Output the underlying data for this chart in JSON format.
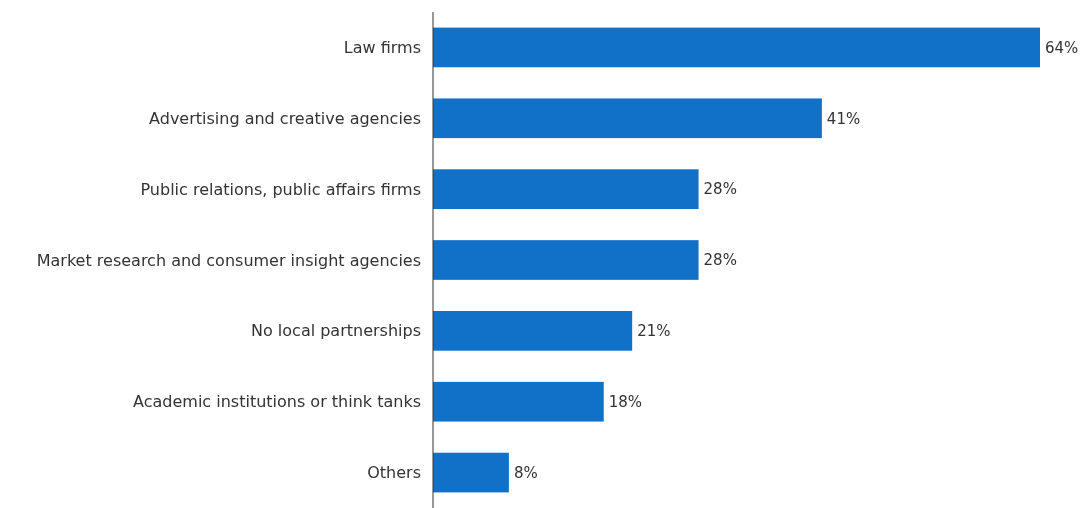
{
  "chart_data": {
    "type": "bar",
    "orientation": "horizontal",
    "categories": [
      "Law firms",
      "Advertising and creative agencies",
      "Public relations, public affairs firms",
      "Market research and consumer insight agencies",
      "No local partnerships",
      "Academic institutions or think tanks",
      "Others"
    ],
    "values": [
      64,
      41,
      28,
      28,
      21,
      18,
      8
    ],
    "value_labels": [
      "64%",
      "41%",
      "28%",
      "28%",
      "21%",
      "18%",
      "8%"
    ],
    "color": "#1170c8"
  }
}
